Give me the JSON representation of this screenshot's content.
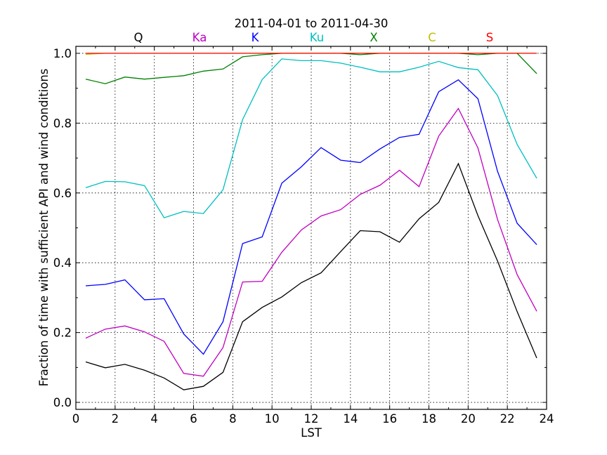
{
  "chart_data": {
    "type": "line",
    "title": "2011-04-01 to 2011-04-30",
    "xlabel": "LST",
    "ylabel": "Fraction of time with sufficient API and wind conditions",
    "xlim": [
      0,
      24
    ],
    "ylim": [
      -0.02,
      1.02
    ],
    "xticks": [
      0,
      2,
      4,
      6,
      8,
      10,
      12,
      14,
      16,
      18,
      20,
      22,
      24
    ],
    "yticks": [
      0.0,
      0.2,
      0.4,
      0.6,
      0.8,
      1.0
    ],
    "ytick_labels": [
      "0.0",
      "0.2",
      "0.4",
      "0.6",
      "0.8",
      "1.0"
    ],
    "grid": true,
    "legend_placement": "top (labels above plot)",
    "x": [
      0.5,
      1.5,
      2.5,
      3.5,
      4.5,
      5.5,
      6.5,
      7.5,
      8.5,
      9.5,
      10.5,
      11.5,
      12.5,
      13.5,
      14.5,
      15.5,
      16.5,
      17.5,
      18.5,
      19.5,
      20.5,
      21.5,
      22.5,
      23.5
    ],
    "series": [
      {
        "name": "Q",
        "color": "#000000",
        "values": [
          0.116,
          0.099,
          0.109,
          0.092,
          0.07,
          0.036,
          0.046,
          0.086,
          0.231,
          0.272,
          0.302,
          0.343,
          0.371,
          0.432,
          0.492,
          0.489,
          0.459,
          0.526,
          0.573,
          0.684,
          0.535,
          0.405,
          0.26,
          0.127
        ]
      },
      {
        "name": "Ka",
        "color": "#bf00bf",
        "values": [
          0.184,
          0.21,
          0.219,
          0.202,
          0.175,
          0.083,
          0.075,
          0.157,
          0.345,
          0.347,
          0.43,
          0.494,
          0.534,
          0.552,
          0.596,
          0.622,
          0.665,
          0.618,
          0.763,
          0.842,
          0.729,
          0.524,
          0.366,
          0.261
        ]
      },
      {
        "name": "K",
        "color": "#0000ff",
        "values": [
          0.334,
          0.338,
          0.351,
          0.294,
          0.297,
          0.196,
          0.138,
          0.231,
          0.455,
          0.474,
          0.628,
          0.675,
          0.73,
          0.694,
          0.687,
          0.726,
          0.759,
          0.768,
          0.89,
          0.924,
          0.87,
          0.662,
          0.513,
          0.452
        ]
      },
      {
        "name": "Ku",
        "color": "#00bfbf",
        "values": [
          0.615,
          0.633,
          0.632,
          0.621,
          0.529,
          0.547,
          0.541,
          0.609,
          0.81,
          0.925,
          0.984,
          0.979,
          0.979,
          0.972,
          0.96,
          0.947,
          0.947,
          0.96,
          0.977,
          0.959,
          0.953,
          0.879,
          0.739,
          0.642
        ]
      },
      {
        "name": "X",
        "color": "#008000",
        "values": [
          0.926,
          0.913,
          0.932,
          0.926,
          0.931,
          0.936,
          0.949,
          0.955,
          0.99,
          0.996,
          1.0,
          1.0,
          1.0,
          1.0,
          0.996,
          1.0,
          1.0,
          1.0,
          1.0,
          1.0,
          0.996,
          1.0,
          1.0,
          0.942
        ]
      },
      {
        "name": "C",
        "color": "#bfbf00",
        "values": [
          0.997,
          1.0,
          1.0,
          1.0,
          1.0,
          1.0,
          1.0,
          1.0,
          1.0,
          1.0,
          1.0,
          1.0,
          1.0,
          1.0,
          1.0,
          1.0,
          1.0,
          1.0,
          1.0,
          1.0,
          1.0,
          1.0,
          1.0,
          1.0
        ]
      },
      {
        "name": "S",
        "color": "#ff0000",
        "values": [
          1.0,
          1.0,
          1.0,
          1.0,
          1.0,
          1.0,
          1.0,
          1.0,
          1.0,
          1.0,
          1.0,
          1.0,
          1.0,
          1.0,
          1.0,
          1.0,
          1.0,
          1.0,
          1.0,
          1.0,
          1.0,
          1.0,
          1.0,
          1.0
        ]
      }
    ]
  }
}
